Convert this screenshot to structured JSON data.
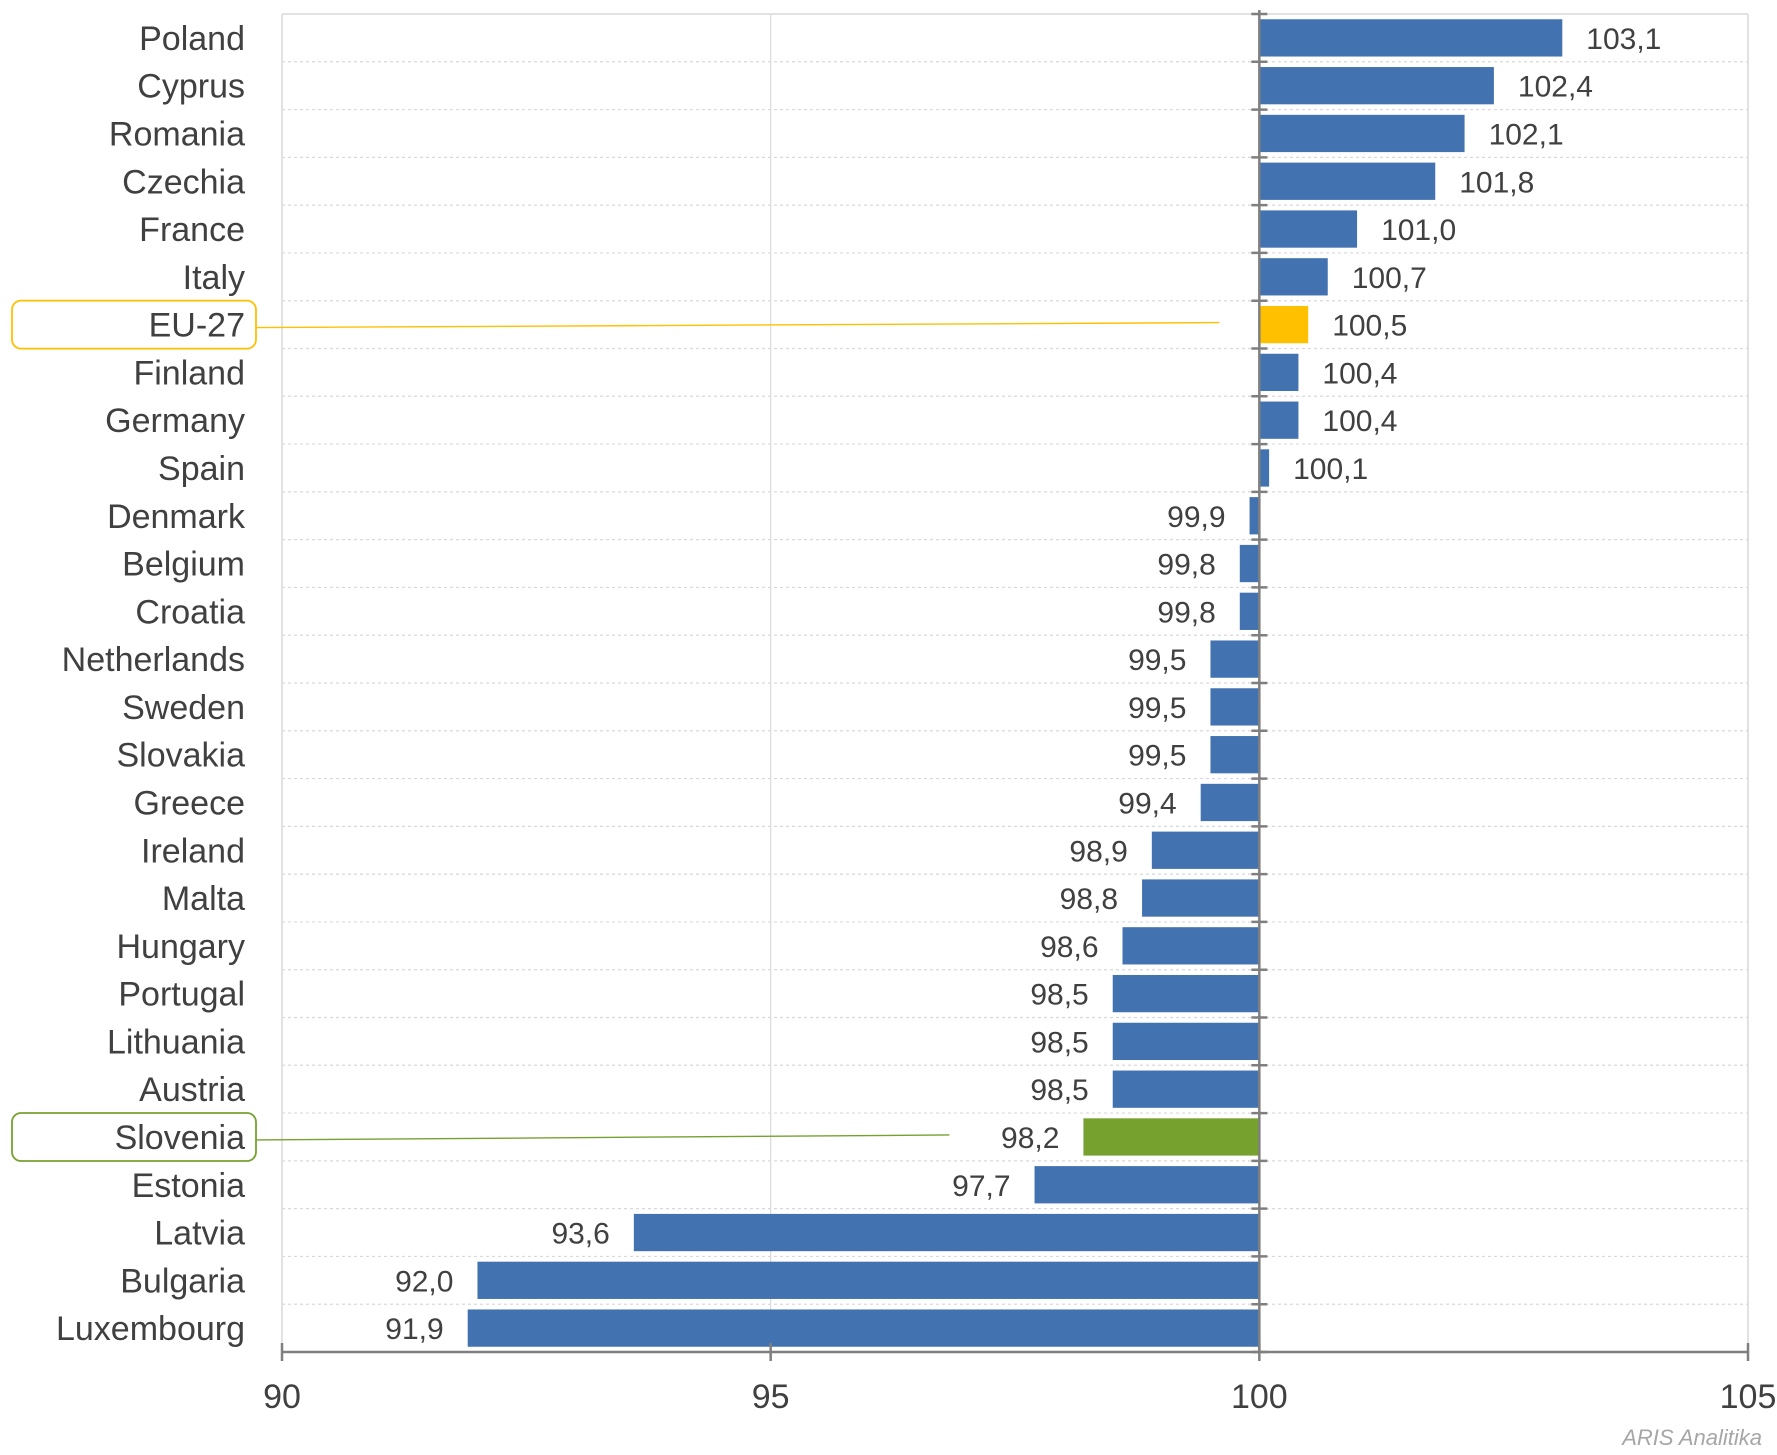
{
  "chart_data": {
    "type": "bar",
    "orientation": "horizontal",
    "categories": [
      "Poland",
      "Cyprus",
      "Romania",
      "Czechia",
      "France",
      "Italy",
      "EU-27",
      "Finland",
      "Germany",
      "Spain",
      "Denmark",
      "Belgium",
      "Croatia",
      "Netherlands",
      "Sweden",
      "Slovakia",
      "Greece",
      "Ireland",
      "Malta",
      "Hungary",
      "Portugal",
      "Lithuania",
      "Austria",
      "Slovenia",
      "Estonia",
      "Latvia",
      "Bulgaria",
      "Luxembourg"
    ],
    "values": [
      103.1,
      102.4,
      102.1,
      101.8,
      101.0,
      100.7,
      100.5,
      100.4,
      100.4,
      100.1,
      99.9,
      99.8,
      99.8,
      99.5,
      99.5,
      99.5,
      99.4,
      98.9,
      98.8,
      98.6,
      98.5,
      98.5,
      98.5,
      98.2,
      97.7,
      93.6,
      92.0,
      91.9
    ],
    "value_labels": [
      "103,1",
      "102,4",
      "102,1",
      "101,8",
      "101,0",
      "100,7",
      "100,5",
      "100,4",
      "100,4",
      "100,1",
      "99,9",
      "99,8",
      "99,8",
      "99,5",
      "99,5",
      "99,5",
      "99,4",
      "98,9",
      "98,8",
      "98,6",
      "98,5",
      "98,5",
      "98,5",
      "98,2",
      "97,7",
      "93,6",
      "92,0",
      "91,9"
    ],
    "baseline": 100,
    "xlim": [
      90,
      105
    ],
    "xticks": [
      90,
      95,
      100,
      105
    ],
    "xtick_labels": [
      "90",
      "95",
      "100",
      "105"
    ],
    "title": "",
    "xlabel": "",
    "ylabel": "",
    "grid": true,
    "highlight": {
      "EU-27": "#ffc000",
      "Slovenia": "#77a12f"
    },
    "highlight_boxes": [
      "EU-27",
      "Slovenia"
    ],
    "colors": {
      "default": "#4272b0",
      "eu": "#ffc000",
      "slovenia": "#77a12f",
      "grid": "#d9d9d9",
      "axis": "#7f7f7f"
    }
  },
  "credit": "ARIS Analitika"
}
